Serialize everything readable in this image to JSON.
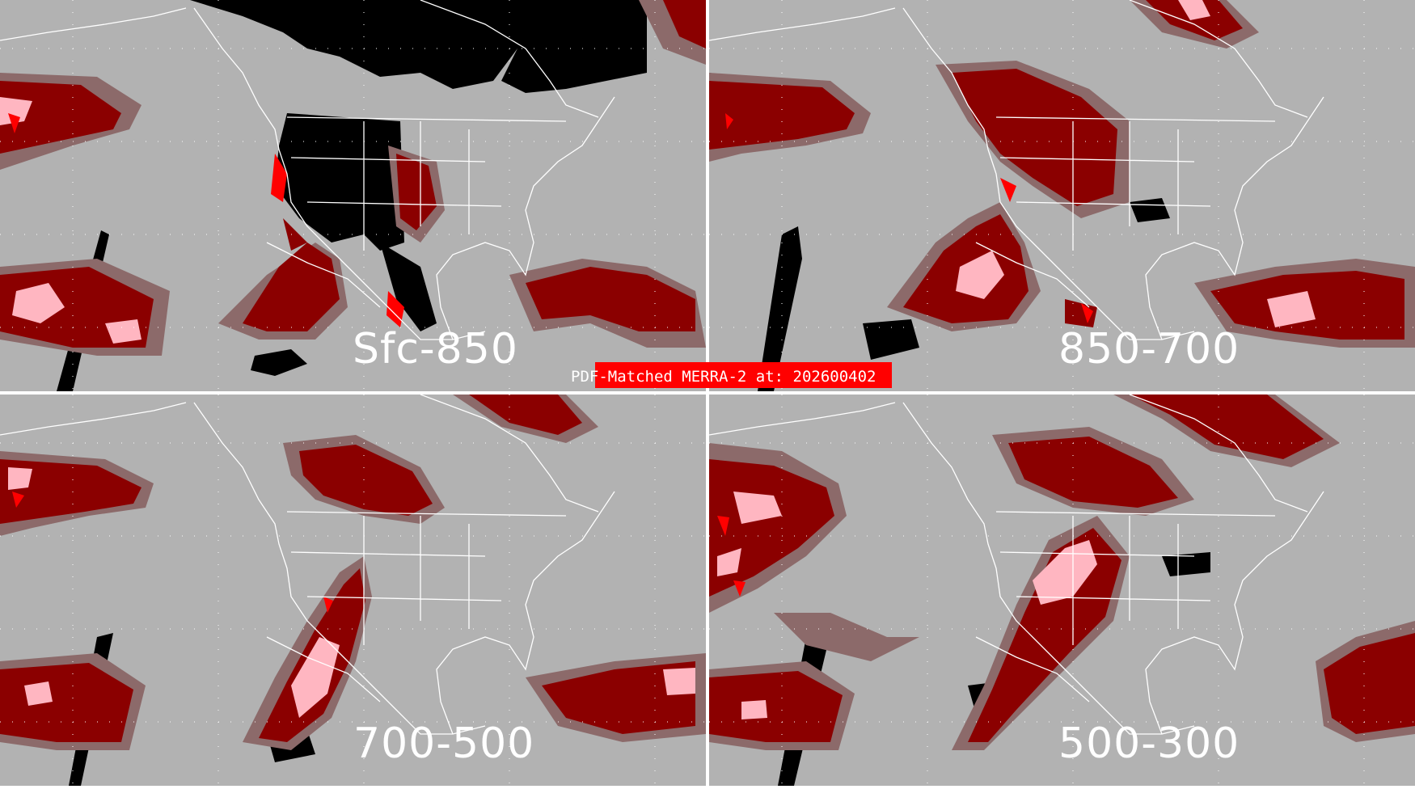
{
  "banner": {
    "text": "PDF-Matched MERRA-2 at: 202600402"
  },
  "panels": [
    {
      "label": "Sfc-850"
    },
    {
      "label": "850-700"
    },
    {
      "label": "700-500"
    },
    {
      "label": "500-300"
    }
  ],
  "colors": {
    "background": "#b2b2b2",
    "light": "#8c6a6a",
    "medium": "#8b0000",
    "high": "#ffb6c1",
    "extreme": "#ff0000",
    "nodata": "#000000",
    "lines": "#ffffff"
  }
}
